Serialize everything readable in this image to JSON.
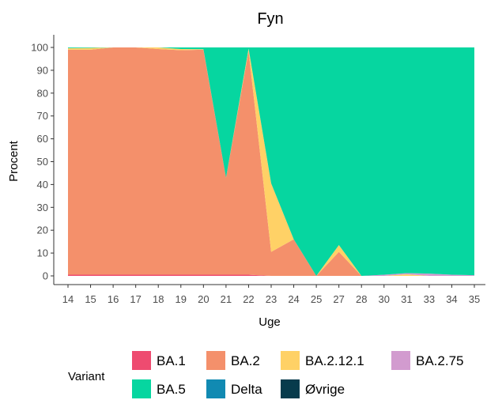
{
  "chart_data": {
    "type": "area",
    "title": "Fyn",
    "xlabel": "Uge",
    "ylabel": "Procent",
    "x": [
      "14",
      "15",
      "16",
      "17",
      "18",
      "19",
      "20",
      "21",
      "22",
      "23",
      "24",
      "25",
      "27",
      "28",
      "30",
      "31",
      "33",
      "34",
      "35"
    ],
    "ylim": [
      0,
      100
    ],
    "yticks": [
      0,
      10,
      20,
      30,
      40,
      50,
      60,
      70,
      80,
      90,
      100
    ],
    "grid": false,
    "stacked": true,
    "legend_title": "Variant",
    "legend_position": "bottom",
    "series": [
      {
        "name": "BA.1",
        "color": "#EE4B70",
        "values": [
          0.5,
          0.5,
          0.5,
          0.5,
          0.5,
          0.5,
          0.5,
          0.5,
          0.5,
          0,
          0,
          0,
          0,
          0,
          0,
          0,
          0,
          0,
          0
        ]
      },
      {
        "name": "BA.2",
        "color": "#F4906B",
        "values": [
          98.5,
          98.5,
          99.5,
          99.5,
          98.8,
          98.3,
          98.5,
          42.5,
          98,
          10.5,
          16,
          0,
          10.5,
          0,
          0,
          0,
          0,
          0,
          0
        ]
      },
      {
        "name": "BA.2.12.1",
        "color": "#FFD166",
        "values": [
          0.7,
          0.8,
          0,
          0,
          0.7,
          0.5,
          0.2,
          0,
          1,
          30,
          0,
          0,
          3,
          0,
          0,
          0.7,
          0,
          0,
          0
        ]
      },
      {
        "name": "BA.2.75",
        "color": "#D29BCF",
        "values": [
          0,
          0,
          0,
          0,
          0,
          0,
          0,
          0,
          0,
          0,
          0,
          0,
          0,
          0,
          0.5,
          0.5,
          1,
          0.5,
          0.3
        ]
      },
      {
        "name": "BA.5",
        "color": "#06D6A0",
        "values": [
          0.3,
          0.2,
          0,
          0,
          0,
          0.7,
          0.8,
          57,
          0.5,
          59.5,
          84,
          100,
          86.5,
          100,
          99.5,
          98.8,
          99,
          99.5,
          99.7
        ]
      },
      {
        "name": "Delta",
        "color": "#118AB2",
        "values": [
          0,
          0,
          0,
          0,
          0,
          0,
          0,
          0,
          0,
          0,
          0,
          0,
          0,
          0,
          0,
          0,
          0,
          0,
          0
        ]
      },
      {
        "name": "Øvrige",
        "color": "#073B4C",
        "values": [
          0,
          0,
          0,
          0,
          0,
          0,
          0,
          0,
          0,
          0,
          0,
          0,
          0,
          0,
          0,
          0,
          0,
          0,
          0
        ]
      }
    ]
  }
}
